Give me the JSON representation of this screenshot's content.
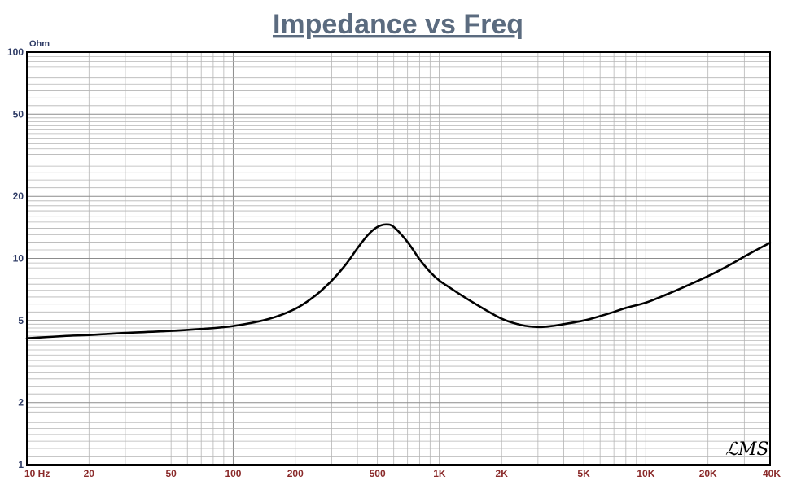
{
  "chart_data": {
    "type": "line",
    "title": "Impedance vs Freq",
    "ylabel": "Ohm",
    "xlabel": "",
    "x_scale": "log",
    "y_scale": "log",
    "xlim": [
      10,
      40000
    ],
    "ylim": [
      1,
      100
    ],
    "grid": true,
    "x_tick_values": [
      10,
      20,
      50,
      100,
      200,
      500,
      1000,
      2000,
      5000,
      10000,
      20000,
      40000
    ],
    "x_tick_labels": [
      "10  Hz",
      "20",
      "50",
      "100",
      "200",
      "500",
      "1K",
      "2K",
      "5K",
      "10K",
      "20K",
      "40K"
    ],
    "y_tick_values": [
      1,
      2,
      5,
      10,
      20,
      50,
      100
    ],
    "y_tick_labels": [
      "1",
      "2",
      "5",
      "10",
      "20",
      "50",
      "100"
    ],
    "series": [
      {
        "color": "#000000",
        "points": [
          [
            10,
            4.1
          ],
          [
            15,
            4.2
          ],
          [
            20,
            4.25
          ],
          [
            30,
            4.35
          ],
          [
            50,
            4.45
          ],
          [
            70,
            4.55
          ],
          [
            100,
            4.7
          ],
          [
            150,
            5.1
          ],
          [
            200,
            5.7
          ],
          [
            250,
            6.6
          ],
          [
            300,
            7.8
          ],
          [
            350,
            9.3
          ],
          [
            400,
            11.2
          ],
          [
            450,
            13.0
          ],
          [
            500,
            14.2
          ],
          [
            550,
            14.6
          ],
          [
            600,
            14.2
          ],
          [
            700,
            12.0
          ],
          [
            800,
            9.9
          ],
          [
            900,
            8.6
          ],
          [
            1000,
            7.8
          ],
          [
            1200,
            6.9
          ],
          [
            1500,
            6.0
          ],
          [
            2000,
            5.1
          ],
          [
            2500,
            4.75
          ],
          [
            3000,
            4.65
          ],
          [
            3500,
            4.7
          ],
          [
            4000,
            4.8
          ],
          [
            5000,
            5.0
          ],
          [
            6000,
            5.25
          ],
          [
            7000,
            5.5
          ],
          [
            8000,
            5.75
          ],
          [
            10000,
            6.1
          ],
          [
            12000,
            6.55
          ],
          [
            15000,
            7.2
          ],
          [
            20000,
            8.2
          ],
          [
            25000,
            9.2
          ],
          [
            30000,
            10.2
          ],
          [
            35000,
            11.1
          ],
          [
            40000,
            11.9
          ]
        ]
      }
    ]
  },
  "logo_text": "LMS"
}
